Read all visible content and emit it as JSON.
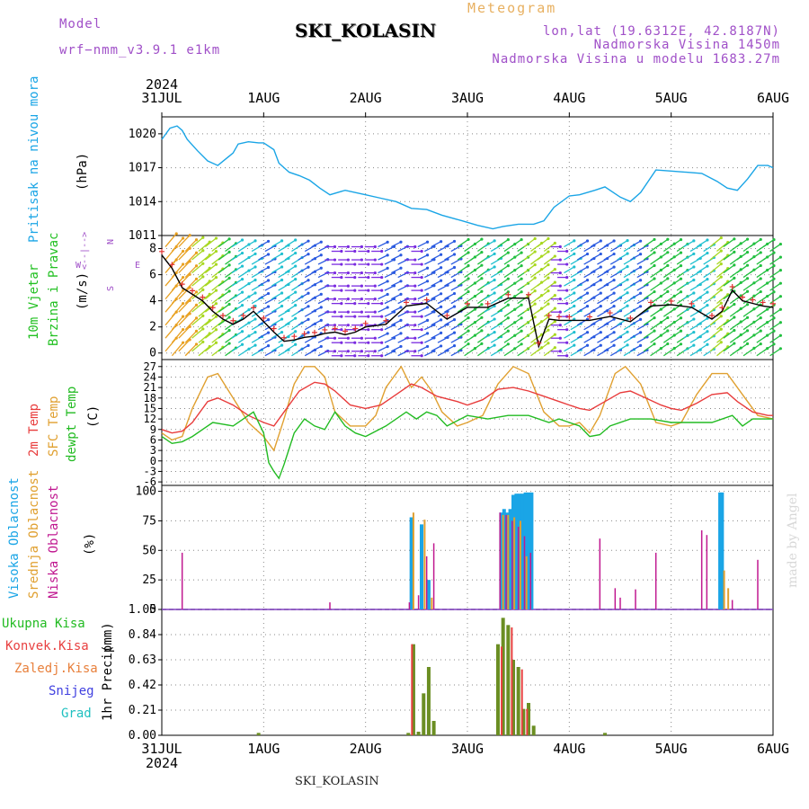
{
  "header": {
    "model_label": "Model",
    "model_value": "wrf−nmm_v3.9.1  e1km",
    "title": "SKI_KOLASIN",
    "meteogram_label": "Meteogram",
    "lonlat": "lon,lat (19.6312E, 42.8187N)",
    "elevation": "Nadmorska Visina 1450m",
    "model_elevation": "Nadmorska Visina u modelu 1683.27m",
    "footer_station": "SKI_KOLASIN",
    "credit": "made by Angel"
  },
  "colors": {
    "pressure": "#1aa5e6",
    "wind_text": "#22c022",
    "temp2m": "#e83c3c",
    "sfc_temp": "#e0a030",
    "dewpt": "#22bb22",
    "high_cloud": "#1aa5e6",
    "mid_cloud": "#e0a030",
    "low_cloud": "#c01890",
    "total_precip": "#6b8e23",
    "conv_precip": "#e84040",
    "frz_precip": "#e8803c",
    "snow": "#4040e0",
    "grad": "#20c0c0",
    "compass": "#a050c8"
  },
  "chart_data": [
    {
      "type": "line",
      "id": "pressure",
      "ylabel": "Pritisak na nivou mora",
      "unit": "(hPa)",
      "ylim": [
        1011,
        1021.5
      ],
      "yticks": [
        1011,
        1014,
        1017,
        1020
      ],
      "x_range_days": [
        0,
        6
      ],
      "x_ticks": [
        "31JUL",
        "1AUG",
        "2AUG",
        "3AUG",
        "4AUG",
        "5AUG",
        "6AUG"
      ],
      "x_year": "2024",
      "series": [
        {
          "x": [
            0,
            0.08,
            0.15,
            0.2,
            0.25,
            0.35,
            0.45,
            0.55,
            0.7,
            0.75,
            0.85,
            0.95,
            1.0,
            1.1,
            1.15,
            1.25,
            1.35,
            1.45,
            1.55,
            1.65,
            1.8,
            2.0,
            2.15,
            2.3,
            2.45,
            2.6,
            2.75,
            2.95,
            3.1,
            3.25,
            3.35,
            3.5,
            3.65,
            3.75,
            3.85,
            4.0,
            4.1,
            4.25,
            4.35,
            4.5,
            4.6,
            4.7,
            4.85,
            5.0,
            5.15,
            5.3,
            5.45,
            5.55,
            5.65,
            5.75,
            5.85,
            5.95,
            6.0
          ],
          "y": [
            1019.5,
            1020.5,
            1020.7,
            1020.3,
            1019.5,
            1018.5,
            1017.6,
            1017.2,
            1018.3,
            1019.1,
            1019.3,
            1019.2,
            1019.2,
            1018.6,
            1017.4,
            1016.6,
            1016.3,
            1015.9,
            1015.2,
            1014.6,
            1015.0,
            1014.6,
            1014.3,
            1014.0,
            1013.4,
            1013.3,
            1012.8,
            1012.3,
            1011.9,
            1011.6,
            1011.8,
            1012.0,
            1012.0,
            1012.3,
            1013.5,
            1014.5,
            1014.6,
            1015.0,
            1015.3,
            1014.4,
            1014.0,
            1014.8,
            1016.8,
            1016.7,
            1016.6,
            1016.5,
            1015.8,
            1015.2,
            1015.0,
            1016.0,
            1017.2,
            1017.2,
            1017.0
          ]
        }
      ]
    },
    {
      "type": "line",
      "id": "wind",
      "ylabel": [
        "10m Vjetar",
        "Brzina i Pravac"
      ],
      "unit": "(m/s)",
      "compass": [
        "W",
        "<--|-->",
        "E",
        "S",
        "N"
      ],
      "ylim": [
        -0.5,
        9
      ],
      "yticks": [
        0,
        2,
        4,
        6,
        8
      ],
      "series": [
        {
          "name": "speed",
          "x": [
            0,
            0.1,
            0.2,
            0.3,
            0.4,
            0.5,
            0.6,
            0.7,
            0.8,
            0.9,
            1.0,
            1.1,
            1.2,
            1.3,
            1.4,
            1.5,
            1.6,
            1.7,
            1.8,
            1.9,
            2.0,
            2.2,
            2.4,
            2.6,
            2.8,
            3.0,
            3.2,
            3.4,
            3.6,
            3.7,
            3.8,
            3.9,
            4.0,
            4.2,
            4.4,
            4.6,
            4.8,
            5.0,
            5.2,
            5.4,
            5.5,
            5.6,
            5.7,
            5.8,
            5.9,
            6.0
          ],
          "y": [
            7.5,
            6.5,
            5.0,
            4.5,
            4.0,
            3.2,
            2.6,
            2.2,
            2.6,
            3.2,
            2.4,
            1.6,
            0.9,
            1.0,
            1.2,
            1.3,
            1.5,
            1.6,
            1.4,
            1.6,
            2.0,
            2.2,
            3.6,
            3.8,
            2.6,
            3.5,
            3.5,
            4.2,
            4.2,
            0.5,
            2.6,
            2.5,
            2.5,
            2.5,
            2.8,
            2.4,
            3.6,
            3.7,
            3.5,
            2.6,
            3.2,
            4.8,
            4.0,
            3.8,
            3.6,
            3.5
          ]
        }
      ],
      "arrow_speeds": [
        7.5,
        6.5,
        5.0,
        4.5,
        4.0,
        3.2,
        2.6,
        2.2,
        2.6,
        3.2,
        2.4,
        1.6,
        0.9,
        1.0,
        1.2,
        1.3,
        1.5,
        1.6,
        1.4,
        1.6,
        2.0,
        2.2,
        3.6,
        3.8,
        2.6,
        3.5,
        3.5,
        4.2,
        4.2,
        0.5,
        2.6,
        2.5,
        2.5,
        2.5,
        2.8,
        2.4,
        3.6,
        3.7,
        3.5,
        2.6,
        3.2,
        4.8,
        4.0,
        3.8,
        3.6,
        3.5
      ]
    },
    {
      "type": "line",
      "id": "temperature",
      "ylabel": [
        "2m Temp",
        "SFC Temp",
        "dewpt Temp"
      ],
      "unit": "(C)",
      "ylim": [
        -7,
        29
      ],
      "yticks": [
        -6,
        -3,
        0,
        3,
        6,
        9,
        12,
        15,
        18,
        21,
        24,
        27
      ],
      "series": [
        {
          "name": "2m Temp",
          "x": [
            0,
            0.1,
            0.2,
            0.3,
            0.45,
            0.55,
            0.7,
            0.85,
            1.0,
            1.1,
            1.2,
            1.35,
            1.5,
            1.6,
            1.7,
            1.85,
            2.0,
            2.15,
            2.3,
            2.45,
            2.55,
            2.7,
            2.9,
            3.0,
            3.15,
            3.3,
            3.45,
            3.6,
            3.75,
            3.9,
            4.0,
            4.1,
            4.2,
            4.35,
            4.5,
            4.6,
            4.75,
            4.9,
            5.0,
            5.1,
            5.25,
            5.4,
            5.55,
            5.65,
            5.8,
            5.95,
            6.0
          ],
          "y": [
            9,
            8,
            8.5,
            11,
            17,
            18,
            16,
            13,
            11,
            10,
            14,
            20,
            22.5,
            22,
            20,
            16,
            15,
            16,
            19,
            22,
            21,
            18.5,
            17,
            16,
            17.5,
            20.5,
            21,
            20,
            18.5,
            17,
            16,
            15,
            14.5,
            17,
            19.5,
            20,
            18,
            16,
            15,
            14.5,
            16.5,
            19,
            19.5,
            17,
            14,
            13,
            13
          ]
        },
        {
          "name": "SFC Temp",
          "x": [
            0,
            0.1,
            0.2,
            0.3,
            0.45,
            0.55,
            0.7,
            0.85,
            1.0,
            1.1,
            1.2,
            1.3,
            1.4,
            1.5,
            1.6,
            1.7,
            1.85,
            2.0,
            2.1,
            2.2,
            2.35,
            2.45,
            2.55,
            2.65,
            2.75,
            2.9,
            3.0,
            3.15,
            3.3,
            3.45,
            3.6,
            3.75,
            3.9,
            4.0,
            4.1,
            4.2,
            4.3,
            4.45,
            4.55,
            4.7,
            4.85,
            5.0,
            5.1,
            5.25,
            5.4,
            5.55,
            5.7,
            5.85,
            6.0
          ],
          "y": [
            8,
            6,
            7,
            15,
            24,
            25,
            18,
            11,
            7,
            3,
            12,
            22,
            27,
            27,
            24,
            14,
            10,
            10,
            13,
            21,
            27,
            21,
            24,
            20,
            14,
            10,
            11,
            13,
            22,
            27,
            25,
            14,
            10,
            10,
            11,
            8,
            13,
            25,
            27,
            22,
            11,
            10,
            11,
            19,
            25,
            25,
            19,
            13,
            12
          ]
        },
        {
          "name": "dewpt Temp",
          "x": [
            0,
            0.1,
            0.2,
            0.3,
            0.4,
            0.5,
            0.6,
            0.7,
            0.8,
            0.9,
            1.0,
            1.05,
            1.1,
            1.15,
            1.2,
            1.3,
            1.4,
            1.5,
            1.6,
            1.7,
            1.8,
            1.9,
            2.0,
            2.2,
            2.4,
            2.5,
            2.6,
            2.7,
            2.8,
            3.0,
            3.2,
            3.4,
            3.6,
            3.8,
            3.9,
            4.0,
            4.1,
            4.2,
            4.3,
            4.4,
            4.6,
            4.8,
            5.0,
            5.2,
            5.4,
            5.6,
            5.7,
            5.8,
            5.9,
            6.0
          ],
          "y": [
            7,
            5,
            5.5,
            7,
            9,
            11,
            10.5,
            10,
            12,
            14,
            8,
            -0.5,
            -3,
            -5,
            -1,
            8,
            12,
            10,
            9,
            14,
            10,
            8,
            7,
            10,
            14,
            12,
            14,
            13,
            10,
            13,
            12,
            13,
            13,
            11,
            12,
            11,
            10,
            7,
            7.5,
            10,
            12,
            12,
            11,
            11,
            11,
            13,
            10,
            12,
            12,
            12
          ]
        }
      ]
    },
    {
      "type": "bar",
      "id": "clouds",
      "ylabel": [
        "Visoka Oblacnost",
        "Srednja Oblacnost",
        "Niska Oblacnost"
      ],
      "unit": "(%)",
      "ylim": [
        0,
        105
      ],
      "yticks": [
        0,
        25,
        50,
        75,
        100
      ],
      "series": [
        {
          "name": "Visoka Oblacnost",
          "x": [
            2.45,
            2.55,
            2.62,
            3.33,
            3.36,
            3.39,
            3.42,
            3.45,
            3.48,
            3.51,
            3.54,
            3.57,
            3.6,
            3.63,
            5.48,
            5.5
          ],
          "values": [
            78,
            72,
            25,
            82,
            85,
            82,
            85,
            97,
            98,
            98,
            98,
            99,
            99,
            99,
            99,
            99
          ]
        },
        {
          "name": "Srednja Oblacnost",
          "x": [
            2.47,
            2.58,
            2.65,
            3.35,
            3.4,
            3.46,
            3.52,
            3.58,
            5.52,
            5.56
          ],
          "values": [
            82,
            76,
            10,
            80,
            80,
            78,
            75,
            45,
            33,
            18
          ]
        },
        {
          "name": "Niska Oblacnost",
          "x": [
            0.2,
            1.65,
            2.43,
            2.52,
            2.6,
            2.67,
            3.32,
            3.38,
            3.44,
            3.5,
            3.56,
            3.62,
            4.3,
            4.45,
            4.5,
            4.65,
            4.85,
            5.3,
            5.35,
            5.6,
            5.85
          ],
          "values": [
            48,
            6,
            6,
            12,
            45,
            56,
            82,
            80,
            75,
            70,
            62,
            48,
            60,
            18,
            10,
            17,
            48,
            67,
            63,
            8,
            42
          ]
        }
      ]
    },
    {
      "type": "bar",
      "id": "precip",
      "ylabel": "1hr Precip",
      "unit": "(mm)",
      "ylim": [
        0,
        1.05
      ],
      "yticks": [
        0,
        0.21,
        0.42,
        0.63,
        0.84,
        1.05
      ],
      "legend": [
        "Ukupna Kisa",
        "Konvek.Kisa",
        "Zaledj.Kisa",
        "Snijeg",
        "Grad"
      ],
      "series": [
        {
          "name": "Ukupna Kisa",
          "x": [
            0.95,
            2.42,
            2.47,
            2.52,
            2.57,
            2.62,
            2.67,
            3.3,
            3.35,
            3.4,
            3.45,
            3.5,
            3.55,
            3.6,
            3.65,
            4.35
          ],
          "values": [
            0.02,
            0.02,
            0.76,
            0.03,
            0.35,
            0.57,
            0.12,
            0.76,
            0.98,
            0.92,
            0.63,
            0.57,
            0.22,
            0.27,
            0.08,
            0.02
          ]
        },
        {
          "name": "Konvek.Kisa",
          "x": [
            2.46,
            3.34,
            3.44,
            3.54,
            3.59
          ],
          "values": [
            0.76,
            0.74,
            0.9,
            0.55,
            0.22
          ]
        }
      ]
    }
  ]
}
